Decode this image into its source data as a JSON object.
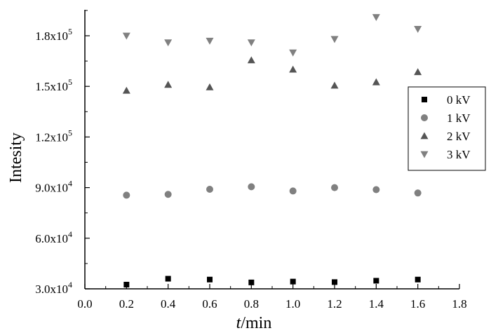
{
  "chart_data": {
    "type": "scatter",
    "xlabel_italic": "t",
    "xlabel_rest": "/min",
    "ylabel": "Intesity",
    "xlim": [
      0.0,
      1.8
    ],
    "ylim": [
      30000,
      195000
    ],
    "x_ticks": [
      "0.0",
      "0.2",
      "0.4",
      "0.6",
      "0.8",
      "1.0",
      "1.2",
      "1.4",
      "1.6",
      "1.8"
    ],
    "y_ticks": [
      {
        "value": 30000,
        "mantissa": "3.0x10",
        "exp": "4"
      },
      {
        "value": 60000,
        "mantissa": "6.0x10",
        "exp": "4"
      },
      {
        "value": 90000,
        "mantissa": "9.0x10",
        "exp": "4"
      },
      {
        "value": 120000,
        "mantissa": "1.2x10",
        "exp": "5"
      },
      {
        "value": 150000,
        "mantissa": "1.5x10",
        "exp": "5"
      },
      {
        "value": 180000,
        "mantissa": "1.8x10",
        "exp": "5"
      }
    ],
    "legend_position": "right",
    "x": [
      0.2,
      0.4,
      0.6,
      0.8,
      1.0,
      1.2,
      1.4,
      1.6
    ],
    "series": [
      {
        "name": "0 kV",
        "marker": "square",
        "color": "#000000",
        "values": [
          32500,
          36000,
          35500,
          33800,
          34300,
          34000,
          34800,
          35500
        ]
      },
      {
        "name": "1 kV",
        "marker": "circle",
        "color": "#808080",
        "values": [
          85500,
          86000,
          89000,
          90500,
          88000,
          90000,
          88800,
          86800
        ]
      },
      {
        "name": "2 kV",
        "marker": "triangle-up",
        "color": "#555555",
        "values": [
          147500,
          151000,
          149500,
          165500,
          160000,
          150500,
          152500,
          158500
        ]
      },
      {
        "name": "3 kV",
        "marker": "triangle-down",
        "color": "#808080",
        "values": [
          180000,
          176000,
          177000,
          176000,
          170000,
          178000,
          191000,
          184000
        ]
      }
    ]
  }
}
